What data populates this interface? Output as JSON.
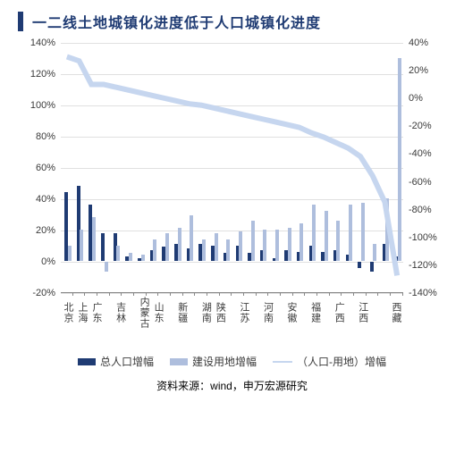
{
  "title": "一二线土地城镇化进度低于人口城镇化进度",
  "title_bar_color": "#1f3b73",
  "title_color": "#1f3b73",
  "source": "资料来源：wind，申万宏源研究",
  "chart": {
    "type": "bar+line-dual-axis",
    "background_color": "#ffffff",
    "grid_color": "#e0e0e0",
    "axis_color": "#888888",
    "tick_color": "#3a3a3a",
    "tick_fontsize": 11,
    "label_color": "#3a3a3a",
    "label_fontsize": 11,
    "left_axis": {
      "min": -20,
      "max": 140,
      "step": 20,
      "suffix": "%"
    },
    "right_axis": {
      "min": -140,
      "max": 40,
      "step": 20,
      "suffix": "%"
    },
    "categories": [
      "北京",
      "上海",
      "广东",
      "",
      "吉林",
      "",
      "内蒙古",
      "山东",
      "",
      "新疆",
      "",
      "湖南",
      "陕西",
      "",
      "江苏",
      "",
      "河南",
      "",
      "安徽",
      "",
      "福建",
      "",
      "广西",
      "",
      "江西",
      "",
      "",
      "西藏"
    ],
    "series": [
      {
        "name": "总人口增幅",
        "type": "bar",
        "axis": "left",
        "color": "#1f3b73",
        "values": [
          44,
          48,
          36,
          18,
          18,
          3,
          2,
          7,
          9,
          11,
          8,
          11,
          10,
          5,
          10,
          5,
          7,
          2,
          7,
          6,
          10,
          6,
          7,
          4,
          -4,
          -6,
          11,
          3
        ]
      },
      {
        "name": "建设用地增幅",
        "type": "bar",
        "axis": "left",
        "color": "#aebedd",
        "values": [
          10,
          20,
          28,
          -6,
          10,
          5,
          4,
          14,
          18,
          21,
          29,
          14,
          18,
          14,
          19,
          26,
          20,
          20,
          21,
          24,
          36,
          32,
          26,
          36,
          37,
          11,
          40,
          130
        ]
      },
      {
        "name": "（人口-用地）增幅",
        "type": "line",
        "axis": "right",
        "color": "#c6d6ef",
        "line_width": 2,
        "values": [
          30,
          27,
          10,
          10,
          8,
          6,
          4,
          2,
          0,
          -2,
          -4,
          -5,
          -7,
          -9,
          -11,
          -13,
          -15,
          -17,
          -19,
          -21,
          -25,
          -28,
          -32,
          -36,
          -42,
          -56,
          -75,
          -128
        ]
      }
    ],
    "legend": {
      "position": "bottom",
      "fontsize": 12,
      "color": "#3a3a3a"
    }
  }
}
